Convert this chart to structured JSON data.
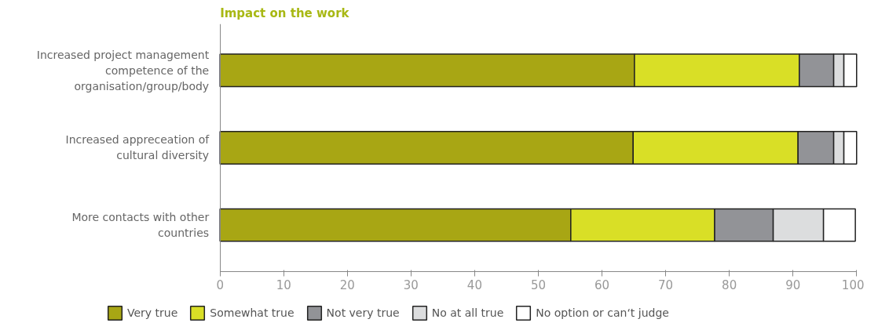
{
  "chart_data": {
    "type": "bar",
    "orientation": "horizontal",
    "stacked": true,
    "title": "Impact on the work",
    "categories": [
      "Increased project management competence of the organisation/group/body",
      "Increased appreceation of cultural diversity",
      "More contacts with other countries"
    ],
    "series": [
      {
        "name": "Very true",
        "color": "#a8a614",
        "values": [
          65.1,
          64.9,
          55.1
        ]
      },
      {
        "name": "Somewhat true",
        "color": "#d9df26",
        "values": [
          25.9,
          25.9,
          22.6
        ]
      },
      {
        "name": "Not very true",
        "color": "#929397",
        "values": [
          5.4,
          5.6,
          9.2
        ]
      },
      {
        "name": "No at all true",
        "color": "#dcddde",
        "values": [
          1.6,
          1.6,
          7.9
        ]
      },
      {
        "name": "No option or can‘t judge",
        "color": "#ffffff",
        "values": [
          2.0,
          2.0,
          5.0
        ]
      }
    ],
    "xlim": [
      0,
      100
    ],
    "xticks": [
      0,
      10,
      20,
      30,
      40,
      50,
      60,
      70,
      80,
      90,
      100
    ],
    "grid": false,
    "legend": "bottom"
  }
}
